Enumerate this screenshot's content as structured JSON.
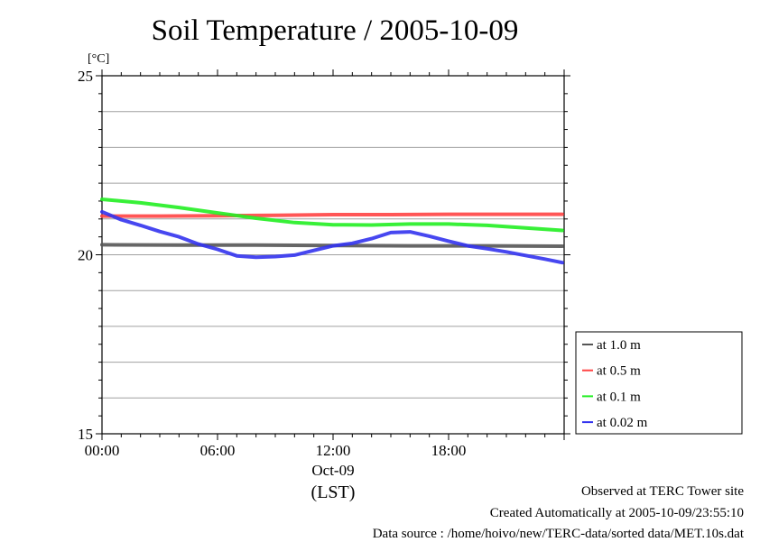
{
  "chart_data": {
    "type": "line",
    "title": "Soil Temperature / 2005-10-09",
    "ylabel": "[°C]",
    "xlabel": "(LST)",
    "date_label": "Oct-09",
    "ylim": [
      15,
      25
    ],
    "yticks": [
      15,
      20,
      25
    ],
    "ytick_labels": [
      "15",
      "20",
      "25"
    ],
    "xlim": [
      0,
      24
    ],
    "xticks": [
      0,
      6,
      12,
      18
    ],
    "xtick_labels": [
      "00:00",
      "06:00",
      "12:00",
      "18:00"
    ],
    "grid": true,
    "legend_position": "right",
    "series": [
      {
        "name": "at 1.0 m",
        "color": "#555555",
        "x": [
          0,
          4,
          8,
          12,
          16,
          20,
          23.9
        ],
        "y": [
          20.28,
          20.27,
          20.27,
          20.26,
          20.25,
          20.25,
          20.24
        ]
      },
      {
        "name": "at 0.5 m",
        "color": "#ff4444",
        "x": [
          0,
          3,
          6,
          9,
          12,
          15,
          18,
          21,
          23.9
        ],
        "y": [
          21.08,
          21.08,
          21.09,
          21.1,
          21.12,
          21.12,
          21.13,
          21.13,
          21.13
        ]
      },
      {
        "name": "at 0.1 m",
        "color": "#22ee22",
        "x": [
          0,
          2,
          4,
          6,
          8,
          10,
          12,
          14,
          16,
          18,
          20,
          22,
          23.9
        ],
        "y": [
          21.55,
          21.45,
          21.32,
          21.17,
          21.02,
          20.9,
          20.84,
          20.83,
          20.86,
          20.86,
          20.82,
          20.75,
          20.68
        ]
      },
      {
        "name": "at 0.02 m",
        "color": "#3333ee",
        "x": [
          0,
          1,
          2,
          3,
          4,
          5,
          6,
          7,
          8,
          9,
          10,
          11,
          12,
          13,
          14,
          15,
          16,
          17,
          18,
          19,
          20,
          21,
          22,
          23,
          23.9
        ],
        "y": [
          21.2,
          20.98,
          20.82,
          20.65,
          20.5,
          20.3,
          20.15,
          19.97,
          19.93,
          19.95,
          19.99,
          20.12,
          20.25,
          20.32,
          20.45,
          20.62,
          20.64,
          20.52,
          20.38,
          20.25,
          20.17,
          20.08,
          19.98,
          19.88,
          19.78
        ]
      }
    ]
  },
  "footer": {
    "site": "Observed at TERC Tower site",
    "created": "Created Automatically at 2005-10-09/23:55:10",
    "source": "Data source : /home/hoivo/new/TERC-data/sorted  data/MET.10s.dat"
  }
}
